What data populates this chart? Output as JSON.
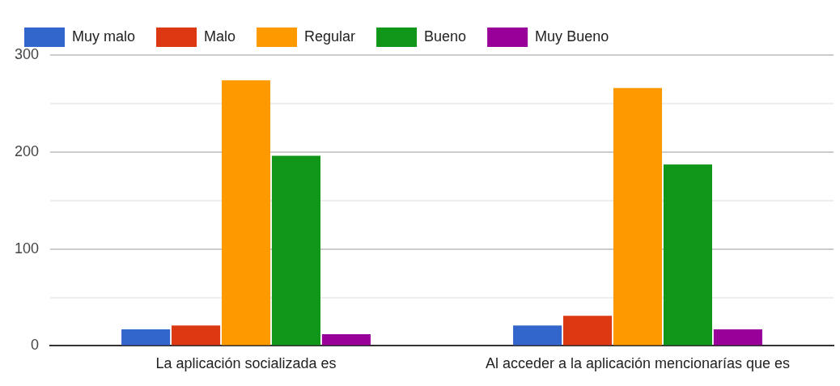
{
  "chart_data": {
    "type": "bar",
    "categories": [
      "La aplicación socializada es",
      "Al acceder a la aplicación mencionarías que es"
    ],
    "series": [
      {
        "name": "Muy malo",
        "color": "#3366cc",
        "values": [
          17,
          21
        ]
      },
      {
        "name": "Malo",
        "color": "#dc3912",
        "values": [
          21,
          31
        ]
      },
      {
        "name": "Regular",
        "color": "#ff9900",
        "values": [
          274,
          266
        ]
      },
      {
        "name": "Bueno",
        "color": "#109618",
        "values": [
          196,
          187
        ]
      },
      {
        "name": "Muy Bueno",
        "color": "#990099",
        "values": [
          12,
          17
        ]
      }
    ],
    "ylim": [
      0,
      300
    ],
    "yticks": [
      0,
      {
        "value": 50,
        "label": null
      },
      100,
      {
        "value": 150,
        "label": null
      },
      200,
      {
        "value": 250,
        "label": null
      },
      300
    ],
    "grid": "y",
    "legend": "top left"
  }
}
